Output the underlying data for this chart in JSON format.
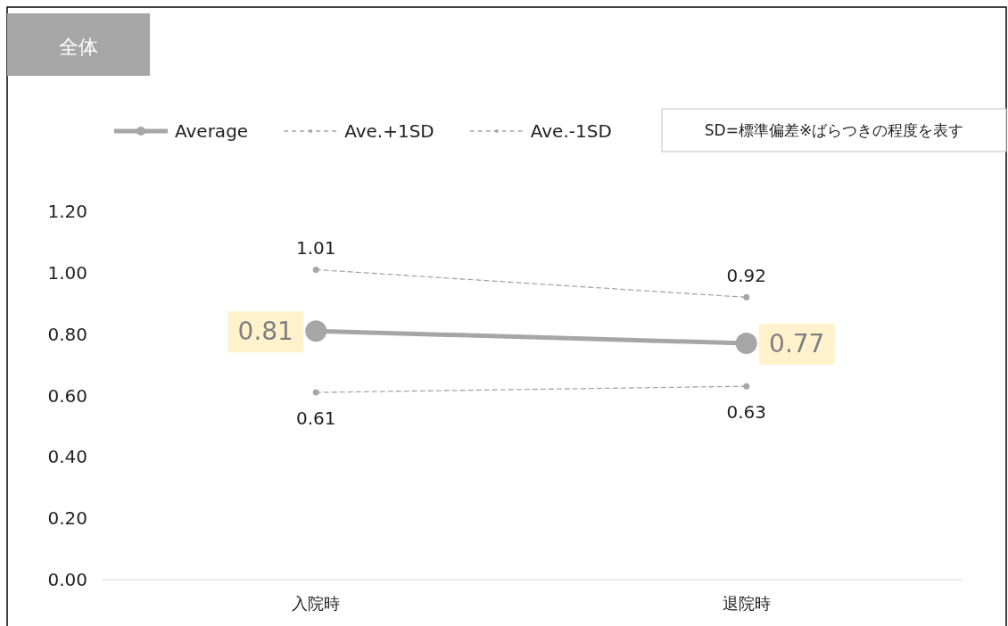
{
  "chart_data": {
    "type": "line",
    "title": "全体",
    "annotations": [
      "SD=標準偏差※ばらつきの程度を表す"
    ],
    "categories": [
      "入院時",
      "退院時"
    ],
    "series": [
      {
        "name": "Average",
        "color": "#a6a6a6",
        "values": [
          0.81,
          0.77
        ],
        "value_labels": [
          "0.81",
          "0.77"
        ],
        "line_style": "solid",
        "marker": "circle"
      },
      {
        "name": "Ave.+1SD",
        "color": "#a6a6a6",
        "values": [
          1.01,
          0.92
        ],
        "value_labels": [
          "1.01",
          "0.92"
        ],
        "line_style": "dashed",
        "marker": "circle"
      },
      {
        "name": "Ave.-1SD",
        "color": "#a6a6a6",
        "values": [
          0.61,
          0.63
        ],
        "value_labels": [
          "0.61",
          "0.63"
        ],
        "line_style": "dashed",
        "marker": "circle"
      }
    ],
    "ylim": [
      0,
      1.2
    ],
    "yticks": [
      {
        "value": 0,
        "label": "0.00"
      },
      {
        "value": 0.2,
        "label": "0.20"
      },
      {
        "value": 0.4,
        "label": "0.40"
      },
      {
        "value": 0.6,
        "label": "0.60"
      },
      {
        "value": 0.8,
        "label": "0.80"
      },
      {
        "value": 1.0,
        "label": "1.00"
      },
      {
        "value": 1.2,
        "label": "1.20"
      }
    ],
    "grid": false,
    "legend": "top"
  }
}
